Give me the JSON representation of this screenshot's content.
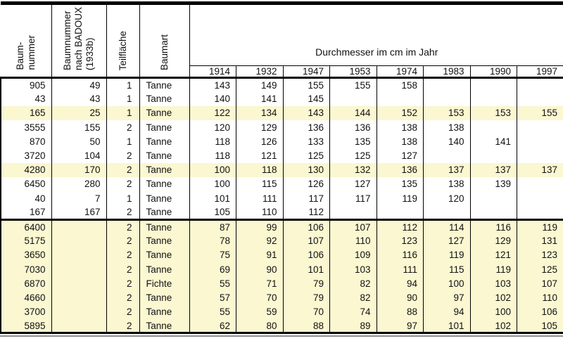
{
  "colors": {
    "highlight": "#FAF7D1",
    "rule_gray": "#8C8C8C",
    "line": "#000000"
  },
  "table": {
    "rotated_headers": [
      "Baum-\nnummer",
      "Baumnummer\nnach BADOUX\n(1933b)",
      "Teilfläche",
      "Baumart"
    ],
    "span_header": "Durchmesser im cm im Jahr",
    "years": [
      "1914",
      "1932",
      "1947",
      "1953",
      "1974",
      "1983",
      "1990",
      "1997"
    ],
    "sections": [
      {
        "rows": [
          {
            "baumnummer": "905",
            "badoux": "49",
            "teilflaeche": "1",
            "baumart": "Tanne",
            "values": [
              "143",
              "149",
              "155",
              "155",
              "158",
              "",
              "",
              ""
            ],
            "highlight": false
          },
          {
            "baumnummer": "43",
            "badoux": "43",
            "teilflaeche": "1",
            "baumart": "Tanne",
            "values": [
              "140",
              "141",
              "145",
              "",
              "",
              "",
              "",
              ""
            ],
            "highlight": false
          },
          {
            "baumnummer": "165",
            "badoux": "25",
            "teilflaeche": "1",
            "baumart": "Tanne",
            "values": [
              "122",
              "134",
              "143",
              "144",
              "152",
              "153",
              "153",
              "155"
            ],
            "highlight": true
          },
          {
            "baumnummer": "3555",
            "badoux": "155",
            "teilflaeche": "2",
            "baumart": "Tanne",
            "values": [
              "120",
              "129",
              "136",
              "136",
              "138",
              "138",
              "",
              ""
            ],
            "highlight": false
          },
          {
            "baumnummer": "870",
            "badoux": "50",
            "teilflaeche": "1",
            "baumart": "Tanne",
            "values": [
              "118",
              "126",
              "133",
              "135",
              "138",
              "140",
              "141",
              ""
            ],
            "highlight": false
          },
          {
            "baumnummer": "3720",
            "badoux": "104",
            "teilflaeche": "2",
            "baumart": "Tanne",
            "values": [
              "118",
              "121",
              "125",
              "125",
              "127",
              "",
              "",
              ""
            ],
            "highlight": false
          },
          {
            "baumnummer": "4280",
            "badoux": "170",
            "teilflaeche": "2",
            "baumart": "Tanne",
            "values": [
              "100",
              "118",
              "130",
              "132",
              "136",
              "137",
              "137",
              "137"
            ],
            "highlight": true
          },
          {
            "baumnummer": "6450",
            "badoux": "280",
            "teilflaeche": "2",
            "baumart": "Tanne",
            "values": [
              "100",
              "115",
              "126",
              "127",
              "135",
              "138",
              "139",
              ""
            ],
            "highlight": false
          },
          {
            "baumnummer": "40",
            "badoux": "7",
            "teilflaeche": "1",
            "baumart": "Tanne",
            "values": [
              "101",
              "111",
              "117",
              "117",
              "119",
              "120",
              "",
              ""
            ],
            "highlight": false
          },
          {
            "baumnummer": "167",
            "badoux": "167",
            "teilflaeche": "2",
            "baumart": "Tanne",
            "values": [
              "105",
              "110",
              "112",
              "",
              "",
              "",
              "",
              ""
            ],
            "highlight": false
          }
        ]
      },
      {
        "rows": [
          {
            "baumnummer": "6400",
            "badoux": "",
            "teilflaeche": "2",
            "baumart": "Tanne",
            "values": [
              "87",
              "99",
              "106",
              "107",
              "112",
              "114",
              "116",
              "119"
            ],
            "highlight": true
          },
          {
            "baumnummer": "5175",
            "badoux": "",
            "teilflaeche": "2",
            "baumart": "Tanne",
            "values": [
              "78",
              "92",
              "107",
              "110",
              "123",
              "127",
              "129",
              "131"
            ],
            "highlight": true
          },
          {
            "baumnummer": "3650",
            "badoux": "",
            "teilflaeche": "2",
            "baumart": "Tanne",
            "values": [
              "75",
              "91",
              "106",
              "109",
              "116",
              "119",
              "121",
              "123"
            ],
            "highlight": true
          },
          {
            "baumnummer": "7030",
            "badoux": "",
            "teilflaeche": "2",
            "baumart": "Tanne",
            "values": [
              "69",
              "90",
              "101",
              "103",
              "111",
              "115",
              "119",
              "125"
            ],
            "highlight": true
          },
          {
            "baumnummer": "6870",
            "badoux": "",
            "teilflaeche": "2",
            "baumart": "Fichte",
            "values": [
              "55",
              "71",
              "79",
              "82",
              "94",
              "100",
              "103",
              "107"
            ],
            "highlight": true
          },
          {
            "baumnummer": "4660",
            "badoux": "",
            "teilflaeche": "2",
            "baumart": "Tanne",
            "values": [
              "57",
              "70",
              "79",
              "82",
              "90",
              "97",
              "102",
              "110"
            ],
            "highlight": true
          },
          {
            "baumnummer": "3700",
            "badoux": "",
            "teilflaeche": "2",
            "baumart": "Tanne",
            "values": [
              "55",
              "59",
              "70",
              "74",
              "88",
              "94",
              "100",
              "106"
            ],
            "highlight": true
          },
          {
            "baumnummer": "5895",
            "badoux": "",
            "teilflaeche": "2",
            "baumart": "Tanne",
            "values": [
              "62",
              "80",
              "88",
              "89",
              "97",
              "101",
              "102",
              "105"
            ],
            "highlight": true
          }
        ]
      }
    ]
  }
}
